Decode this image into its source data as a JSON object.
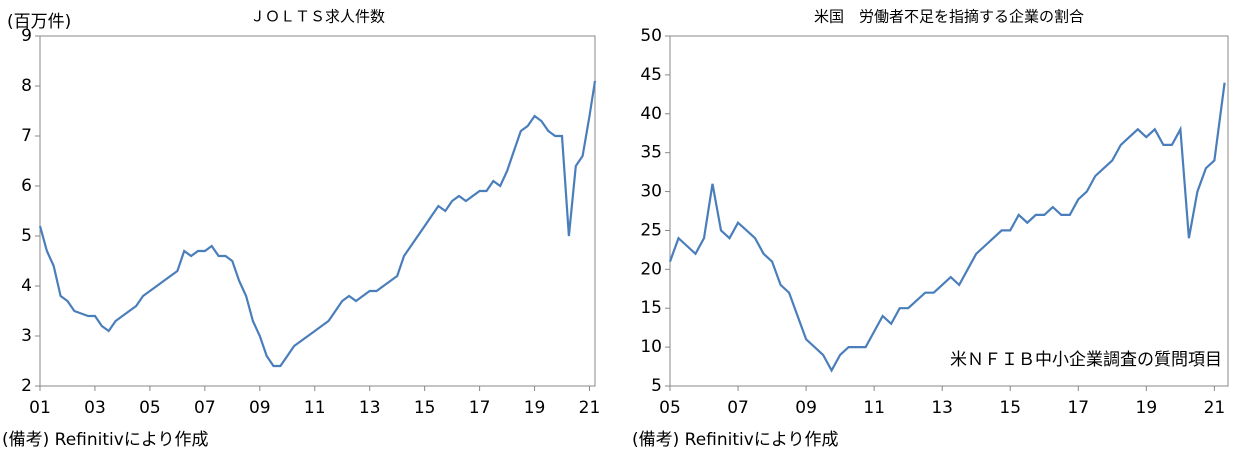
{
  "chart_data": [
    {
      "type": "line",
      "title": "ＪＯＬＴＳ求人件数",
      "y_unit": "(百万件)",
      "note": "(備考) Refinitivにより作成",
      "x": [
        2001,
        2001.25,
        2001.5,
        2001.75,
        2002,
        2002.25,
        2002.5,
        2002.75,
        2003,
        2003.25,
        2003.5,
        2003.75,
        2004,
        2004.25,
        2004.5,
        2004.75,
        2005,
        2005.25,
        2005.5,
        2005.75,
        2006,
        2006.25,
        2006.5,
        2006.75,
        2007,
        2007.25,
        2007.5,
        2007.75,
        2008,
        2008.25,
        2008.5,
        2008.75,
        2009,
        2009.25,
        2009.5,
        2009.75,
        2010,
        2010.25,
        2010.5,
        2010.75,
        2011,
        2011.25,
        2011.5,
        2011.75,
        2012,
        2012.25,
        2012.5,
        2012.75,
        2013,
        2013.25,
        2013.5,
        2013.75,
        2014,
        2014.25,
        2014.5,
        2014.75,
        2015,
        2015.25,
        2015.5,
        2015.75,
        2016,
        2016.25,
        2016.5,
        2016.75,
        2017,
        2017.25,
        2017.5,
        2017.75,
        2018,
        2018.25,
        2018.5,
        2018.75,
        2019,
        2019.25,
        2019.5,
        2019.75,
        2020,
        2020.25,
        2020.5,
        2020.75,
        2021,
        2021.2
      ],
      "series": [
        {
          "color": "#4a7ebb",
          "values": [
            5.2,
            4.7,
            4.4,
            3.8,
            3.7,
            3.5,
            3.45,
            3.4,
            3.4,
            3.2,
            3.1,
            3.3,
            3.4,
            3.5,
            3.6,
            3.8,
            3.9,
            4.0,
            4.1,
            4.2,
            4.3,
            4.7,
            4.6,
            4.7,
            4.7,
            4.8,
            4.6,
            4.6,
            4.5,
            4.1,
            3.8,
            3.3,
            3.0,
            2.6,
            2.4,
            2.4,
            2.6,
            2.8,
            2.9,
            3.0,
            3.1,
            3.2,
            3.3,
            3.5,
            3.7,
            3.8,
            3.7,
            3.8,
            3.9,
            3.9,
            4.0,
            4.1,
            4.2,
            4.6,
            4.8,
            5.0,
            5.2,
            5.4,
            5.6,
            5.5,
            5.7,
            5.8,
            5.7,
            5.8,
            5.9,
            5.9,
            6.1,
            6.0,
            6.3,
            6.7,
            7.1,
            7.2,
            7.4,
            7.3,
            7.1,
            7.0,
            7.0,
            5.0,
            6.4,
            6.6,
            7.4,
            8.1
          ]
        }
      ],
      "xlim": [
        2001,
        2021.2
      ],
      "xticks": [
        {
          "value": 2001,
          "label": "01"
        },
        {
          "value": 2003,
          "label": "03"
        },
        {
          "value": 2005,
          "label": "05"
        },
        {
          "value": 2007,
          "label": "07"
        },
        {
          "value": 2009,
          "label": "09"
        },
        {
          "value": 2011,
          "label": "11"
        },
        {
          "value": 2013,
          "label": "13"
        },
        {
          "value": 2015,
          "label": "15"
        },
        {
          "value": 2017,
          "label": "17"
        },
        {
          "value": 2019,
          "label": "19"
        },
        {
          "value": 2021,
          "label": "21"
        }
      ],
      "ylim": [
        2,
        9
      ],
      "yticks": [
        2,
        3,
        4,
        5,
        6,
        7,
        8,
        9
      ]
    },
    {
      "type": "line",
      "title": "米国　労働者不足を指摘する企業の割合",
      "annotation": "米ＮＦＩＢ中小企業調査の質問項目",
      "note": "(備考) Refinitivにより作成",
      "x": [
        2005,
        2005.25,
        2005.5,
        2005.75,
        2006,
        2006.25,
        2006.5,
        2006.75,
        2007,
        2007.25,
        2007.5,
        2007.75,
        2008,
        2008.25,
        2008.5,
        2008.75,
        2009,
        2009.25,
        2009.5,
        2009.75,
        2010,
        2010.25,
        2010.5,
        2010.75,
        2011,
        2011.25,
        2011.5,
        2011.75,
        2012,
        2012.25,
        2012.5,
        2012.75,
        2013,
        2013.25,
        2013.5,
        2013.75,
        2014,
        2014.25,
        2014.5,
        2014.75,
        2015,
        2015.25,
        2015.5,
        2015.75,
        2016,
        2016.25,
        2016.5,
        2016.75,
        2017,
        2017.25,
        2017.5,
        2017.75,
        2018,
        2018.25,
        2018.5,
        2018.75,
        2019,
        2019.25,
        2019.5,
        2019.75,
        2020,
        2020.25,
        2020.5,
        2020.75,
        2021,
        2021.3
      ],
      "series": [
        {
          "color": "#4a7ebb",
          "values": [
            21,
            24,
            23,
            22,
            24,
            31,
            25,
            24,
            26,
            25,
            24,
            22,
            21,
            18,
            17,
            14,
            11,
            10,
            9,
            7,
            9,
            10,
            10,
            10,
            12,
            14,
            13,
            15,
            15,
            16,
            17,
            17,
            18,
            19,
            18,
            20,
            22,
            23,
            24,
            25,
            25,
            27,
            26,
            27,
            27,
            28,
            27,
            27,
            29,
            30,
            32,
            33,
            34,
            36,
            37,
            38,
            37,
            38,
            36,
            36,
            38,
            24,
            30,
            33,
            34,
            44
          ]
        }
      ],
      "xlim": [
        2005,
        2021.4
      ],
      "xticks": [
        {
          "value": 2005,
          "label": "05"
        },
        {
          "value": 2007,
          "label": "07"
        },
        {
          "value": 2009,
          "label": "09"
        },
        {
          "value": 2011,
          "label": "11"
        },
        {
          "value": 2013,
          "label": "13"
        },
        {
          "value": 2015,
          "label": "15"
        },
        {
          "value": 2017,
          "label": "17"
        },
        {
          "value": 2019,
          "label": "19"
        },
        {
          "value": 2021,
          "label": "21"
        }
      ],
      "ylim": [
        5,
        50
      ],
      "yticks": [
        5,
        10,
        15,
        20,
        25,
        30,
        35,
        40,
        45,
        50
      ]
    }
  ]
}
